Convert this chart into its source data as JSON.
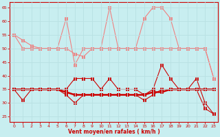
{
  "x": [
    0,
    1,
    2,
    3,
    4,
    5,
    6,
    7,
    8,
    9,
    10,
    11,
    12,
    13,
    14,
    15,
    16,
    17,
    18,
    19,
    20,
    21,
    22,
    23
  ],
  "line1_rafales_light": [
    55,
    50,
    50,
    50,
    50,
    50,
    61,
    44,
    50,
    50,
    50,
    65,
    50,
    50,
    50,
    61,
    65,
    65,
    61,
    50,
    50,
    50,
    50,
    39
  ],
  "line2_trend_light": [
    55,
    53,
    51,
    50,
    50,
    50,
    50,
    48,
    47,
    50,
    50,
    50,
    50,
    50,
    50,
    50,
    50,
    50,
    50,
    50,
    50,
    50,
    50,
    39
  ],
  "line3_moyen_jagged": [
    35,
    35,
    35,
    35,
    35,
    35,
    35,
    39,
    39,
    39,
    35,
    39,
    35,
    35,
    35,
    33,
    35,
    44,
    39,
    35,
    35,
    39,
    30,
    26
  ],
  "line4_smooth_dark": [
    35,
    35,
    35,
    35,
    35,
    35,
    34,
    33,
    33,
    33,
    33,
    33,
    33,
    33,
    33,
    33,
    34,
    34,
    35,
    35,
    35,
    35,
    35,
    35
  ],
  "line5_declining": [
    35,
    31,
    35,
    35,
    35,
    35,
    33,
    30,
    33,
    33,
    33,
    33,
    33,
    33,
    33,
    31,
    33,
    35,
    35,
    35,
    35,
    35,
    28,
    26
  ],
  "color_light": "#f08080",
  "color_dark": "#cc0000",
  "color_medium": "#dd2222",
  "bg_color": "#c8eef0",
  "grid_color": "#aadddd",
  "xlabel": "Vent moyen/en rafales ( km/h )",
  "yticks": [
    25,
    30,
    35,
    40,
    45,
    50,
    55,
    60,
    65
  ],
  "xticks": [
    0,
    1,
    2,
    3,
    4,
    5,
    6,
    7,
    8,
    9,
    10,
    11,
    12,
    13,
    14,
    15,
    16,
    17,
    18,
    19,
    20,
    21,
    22,
    23
  ],
  "ylim_min": 23,
  "ylim_max": 67
}
